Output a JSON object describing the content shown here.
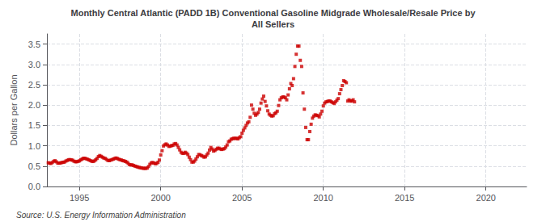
{
  "chart_data": {
    "type": "scatter",
    "title": "Monthly Central Atlantic (PADD 1B) Conventional Gasoline Midgrade Wholesale/Resale Price by\nAll Sellers",
    "ylabel": "Dollars per Gallon",
    "annotations": [
      "Source: U.S. Energy Information Administration"
    ],
    "color": "#cc0000",
    "marker": "square",
    "grid": true,
    "xlim": [
      1993.0,
      2022.5
    ],
    "xticks": [
      1995,
      2000,
      2005,
      2010,
      2015,
      2020
    ],
    "ylim": [
      0.0,
      3.75
    ],
    "yticks": [
      {
        "value": 0.0,
        "label": "0.0"
      },
      0.5,
      {
        "value": 1.0,
        "label": "1.0"
      },
      1.5,
      {
        "value": 2.0,
        "label": "2.0"
      },
      2.5,
      {
        "value": 3.0,
        "label": "3.0"
      },
      3.5
    ],
    "x": [
      1993.083,
      1993.167,
      1993.25,
      1993.333,
      1993.417,
      1993.5,
      1993.583,
      1993.667,
      1993.75,
      1993.833,
      1993.917,
      1994.0,
      1994.083,
      1994.167,
      1994.25,
      1994.333,
      1994.417,
      1994.5,
      1994.583,
      1994.667,
      1994.75,
      1994.833,
      1994.917,
      1995.0,
      1995.083,
      1995.167,
      1995.25,
      1995.333,
      1995.417,
      1995.5,
      1995.583,
      1995.667,
      1995.75,
      1995.833,
      1995.917,
      1996.0,
      1996.083,
      1996.167,
      1996.25,
      1996.333,
      1996.417,
      1996.5,
      1996.583,
      1996.667,
      1996.75,
      1996.833,
      1996.917,
      1997.0,
      1997.083,
      1997.167,
      1997.25,
      1997.333,
      1997.417,
      1997.5,
      1997.583,
      1997.667,
      1997.75,
      1997.833,
      1997.917,
      1998.0,
      1998.083,
      1998.167,
      1998.25,
      1998.333,
      1998.417,
      1998.5,
      1998.583,
      1998.667,
      1998.75,
      1998.833,
      1998.917,
      1999.0,
      1999.083,
      1999.167,
      1999.25,
      1999.333,
      1999.417,
      1999.5,
      1999.583,
      1999.667,
      1999.75,
      1999.833,
      1999.917,
      2000.0,
      2000.083,
      2000.167,
      2000.25,
      2000.333,
      2000.417,
      2000.5,
      2000.583,
      2000.667,
      2000.75,
      2000.833,
      2000.917,
      2001.0,
      2001.083,
      2001.167,
      2001.25,
      2001.333,
      2001.417,
      2001.5,
      2001.583,
      2001.667,
      2001.75,
      2001.833,
      2001.917,
      2002.0,
      2002.083,
      2002.167,
      2002.25,
      2002.333,
      2002.417,
      2002.5,
      2002.583,
      2002.667,
      2002.75,
      2002.833,
      2002.917,
      2003.0,
      2003.083,
      2003.167,
      2003.25,
      2003.333,
      2003.417,
      2003.5,
      2003.583,
      2003.667,
      2003.75,
      2003.833,
      2003.917,
      2004.0,
      2004.083,
      2004.167,
      2004.25,
      2004.333,
      2004.417,
      2004.5,
      2004.583,
      2004.667,
      2004.75,
      2004.833,
      2004.917,
      2005.0,
      2005.083,
      2005.167,
      2005.25,
      2005.333,
      2005.417,
      2005.5,
      2005.583,
      2005.667,
      2005.75,
      2005.833,
      2005.917,
      2006.0,
      2006.083,
      2006.167,
      2006.25,
      2006.333,
      2006.417,
      2006.5,
      2006.583,
      2006.667,
      2006.75,
      2006.833,
      2006.917,
      2007.0,
      2007.083,
      2007.167,
      2007.25,
      2007.333,
      2007.417,
      2007.5,
      2007.583,
      2007.667,
      2007.75,
      2007.833,
      2007.917,
      2008.0,
      2008.083,
      2008.167,
      2008.25,
      2008.333,
      2008.417,
      2008.5,
      2008.583,
      2008.667,
      2008.75,
      2008.833,
      2008.917,
      2009.0,
      2009.083,
      2009.167,
      2009.25,
      2009.333,
      2009.417,
      2009.5,
      2009.583,
      2009.667,
      2009.75,
      2009.833,
      2009.917,
      2010.0,
      2010.083,
      2010.167,
      2010.25,
      2010.333,
      2010.417,
      2010.5,
      2010.583,
      2010.667,
      2010.75,
      2010.833,
      2010.917,
      2011.0,
      2011.083,
      2011.167,
      2011.25,
      2011.333,
      2011.417,
      2011.5,
      2011.583,
      2011.667,
      2011.75,
      2011.833,
      2011.917
    ],
    "values": [
      0.584,
      0.572,
      0.568,
      0.589,
      0.619,
      0.633,
      0.606,
      0.575,
      0.572,
      0.58,
      0.587,
      0.596,
      0.601,
      0.625,
      0.64,
      0.657,
      0.66,
      0.653,
      0.645,
      0.621,
      0.608,
      0.608,
      0.618,
      0.63,
      0.655,
      0.675,
      0.695,
      0.693,
      0.68,
      0.669,
      0.654,
      0.637,
      0.622,
      0.614,
      0.628,
      0.655,
      0.69,
      0.735,
      0.76,
      0.74,
      0.72,
      0.7,
      0.69,
      0.665,
      0.64,
      0.635,
      0.648,
      0.66,
      0.673,
      0.688,
      0.7,
      0.688,
      0.67,
      0.658,
      0.65,
      0.635,
      0.628,
      0.615,
      0.598,
      0.568,
      0.535,
      0.53,
      0.53,
      0.515,
      0.5,
      0.49,
      0.48,
      0.468,
      0.462,
      0.454,
      0.448,
      0.445,
      0.445,
      0.453,
      0.49,
      0.545,
      0.58,
      0.59,
      0.575,
      0.56,
      0.565,
      0.595,
      0.65,
      0.775,
      0.88,
      0.995,
      1.025,
      1.045,
      1.02,
      0.985,
      0.99,
      1.005,
      1.01,
      1.045,
      1.055,
      1.02,
      0.96,
      0.9,
      0.84,
      0.815,
      0.815,
      0.84,
      0.82,
      0.785,
      0.72,
      0.66,
      0.6,
      0.6,
      0.625,
      0.675,
      0.73,
      0.785,
      0.78,
      0.76,
      0.745,
      0.72,
      0.73,
      0.775,
      0.82,
      0.895,
      0.96,
      0.92,
      0.87,
      0.885,
      0.915,
      0.94,
      0.94,
      0.92,
      0.91,
      0.92,
      0.93,
      0.97,
      1.02,
      1.1,
      1.12,
      1.16,
      1.175,
      1.185,
      1.18,
      1.185,
      1.17,
      1.2,
      1.225,
      1.31,
      1.38,
      1.44,
      1.5,
      1.56,
      1.59,
      1.7,
      2.0,
      1.9,
      1.8,
      1.75,
      1.78,
      1.82,
      1.9,
      2.05,
      2.15,
      2.22,
      2.09,
      1.98,
      1.86,
      1.78,
      1.75,
      1.73,
      1.74,
      1.79,
      1.81,
      1.85,
      1.99,
      2.13,
      2.18,
      2.2,
      2.2,
      2.18,
      2.13,
      2.25,
      2.4,
      2.53,
      2.48,
      2.65,
      2.95,
      3.25,
      3.45,
      3.45,
      3.1,
      2.95,
      2.3,
      1.9,
      1.45,
      1.15,
      1.15,
      1.35,
      1.53,
      1.68,
      1.73,
      1.76,
      1.75,
      1.74,
      1.71,
      1.78,
      1.85,
      1.98,
      2.05,
      2.08,
      2.09,
      2.1,
      2.1,
      2.08,
      2.06,
      2.04,
      2.08,
      2.12,
      2.16,
      2.28,
      2.38,
      2.48,
      2.6,
      2.58,
      2.55,
      2.1,
      2.13,
      2.1,
      2.1,
      2.13,
      2.08
    ]
  }
}
